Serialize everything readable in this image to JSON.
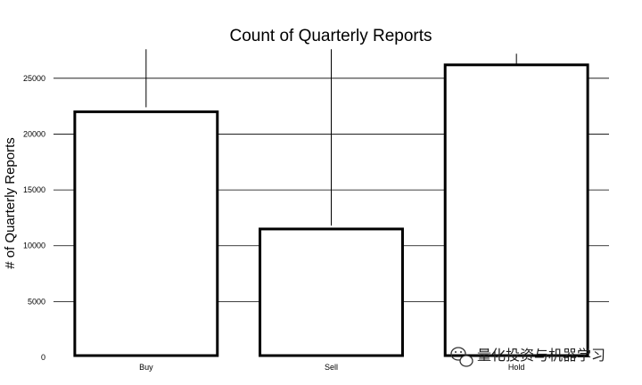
{
  "chart_data": {
    "type": "bar",
    "title": "Count of Quarterly Reports",
    "xlabel": "",
    "ylabel": "# of Quarterly Reports",
    "categories": [
      "Buy",
      "Sell",
      "Hold"
    ],
    "values": [
      22000,
      11500,
      26200
    ],
    "error_upper": [
      27600,
      27600,
      27200
    ],
    "error_lower": [
      22400,
      11800,
      26200
    ],
    "ylim": [
      0,
      27700
    ],
    "yticks": [
      "0",
      "5000",
      "10000",
      "15000",
      "20000",
      "25000"
    ],
    "grid": true,
    "legend": "none"
  },
  "watermark": {
    "text": "量化投资与机器学习",
    "icon": "wechat-icon"
  }
}
